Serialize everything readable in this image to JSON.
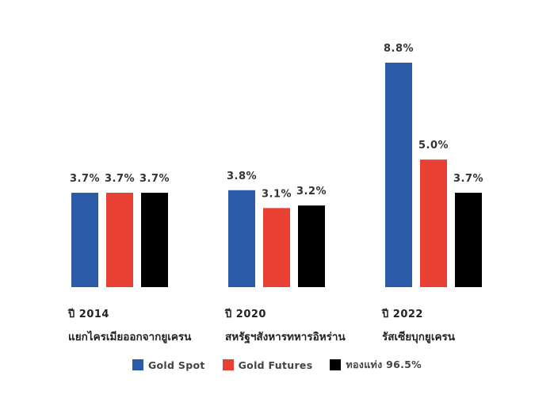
{
  "chart_data": {
    "type": "bar",
    "categories": [
      {
        "year": "ปี 2014",
        "event": "แยกไครเมียออกจากยูเครน"
      },
      {
        "year": "ปี 2020",
        "event": "สหรัฐฯสังหารทหารอิหร่าน"
      },
      {
        "year": "ปี 2022",
        "event": "รัสเซียบุกยูเครน"
      }
    ],
    "series": [
      {
        "name": "Gold Spot",
        "color": "#2b5ba8",
        "values": [
          3.7,
          3.8,
          8.8
        ],
        "labels": [
          "3.7%",
          "3.8%",
          "8.8%"
        ]
      },
      {
        "name": "Gold Futures",
        "color": "#e84133",
        "values": [
          3.7,
          3.1,
          5.0
        ],
        "labels": [
          "3.7%",
          "3.1%",
          "5.0%"
        ]
      },
      {
        "name": "ทองแท่ง 96.5%",
        "color": "#000000",
        "values": [
          3.7,
          3.2,
          3.7
        ],
        "labels": [
          "3.7%",
          "3.2%",
          "3.7%"
        ]
      }
    ],
    "ylim": [
      0,
      8.8
    ],
    "grid": false,
    "legend_position": "bottom"
  }
}
